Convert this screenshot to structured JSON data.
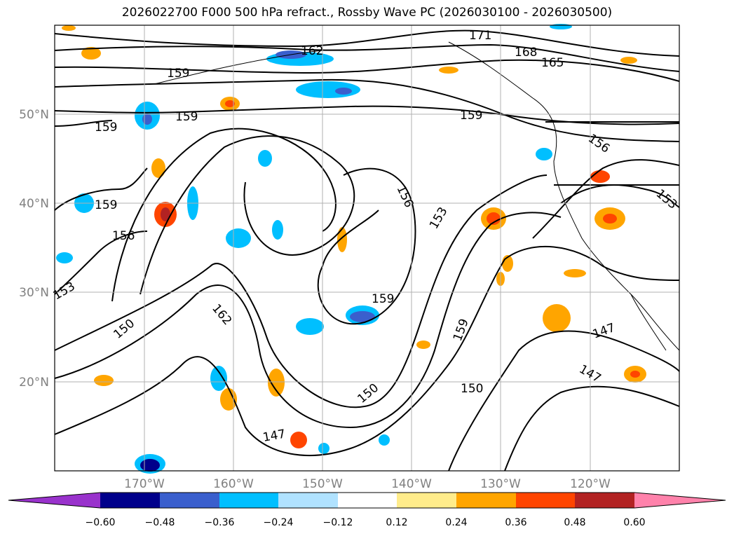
{
  "title": "2026022700 F000 500 hPa refract., Rossby Wave PC (2026030100 - 2026030500)",
  "map": {
    "lat_labels": [
      "50°N",
      "40°N",
      "30°N",
      "20°N"
    ],
    "lon_labels": [
      "170°W",
      "160°W",
      "150°W",
      "140°W",
      "130°W",
      "120°W"
    ],
    "contour_labels": [
      "171",
      "168",
      "165",
      "162",
      "159",
      "159",
      "159",
      "159",
      "159",
      "156",
      "156",
      "156",
      "153",
      "153",
      "153",
      "150",
      "150",
      "150",
      "147",
      "147",
      "147",
      "162",
      "159",
      "159"
    ],
    "grid": true,
    "colors": {
      "grid": "#b0b0b0",
      "axis_label": "#808080",
      "contour": "#000000"
    }
  },
  "colorbar": {
    "ticks": [
      "−0.60",
      "−0.48",
      "−0.36",
      "−0.24",
      "−0.12",
      "0.12",
      "0.24",
      "0.36",
      "0.48",
      "0.60"
    ],
    "colors": [
      "#9932cc",
      "#00008b",
      "#3a5fcd",
      "#00bfff",
      "#b0e2ff",
      "#ffffff",
      "#ffec8b",
      "#ffa500",
      "#ff4500",
      "#b22222",
      "#ff82ab"
    ]
  }
}
